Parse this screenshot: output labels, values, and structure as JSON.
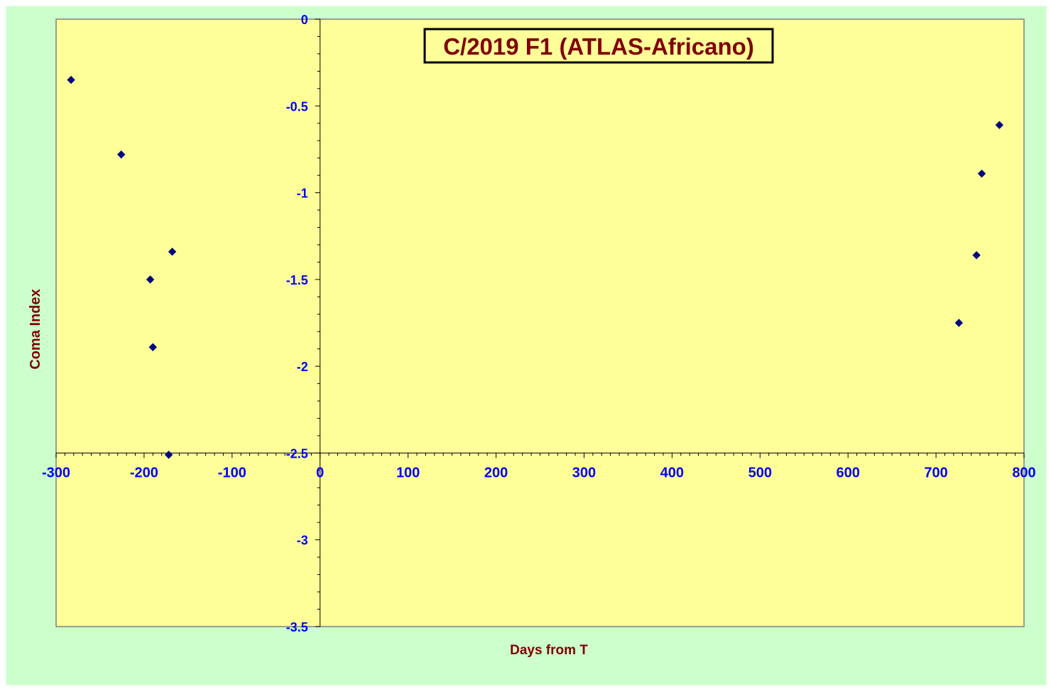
{
  "chart_data": {
    "type": "scatter",
    "title": "C/2019 F1 (ATLAS-Africano)",
    "xlabel": "Days from T",
    "ylabel": "Coma Index",
    "xlim": [
      -300,
      800
    ],
    "ylim": [
      -3.5,
      0
    ],
    "x_ticks": [
      -300,
      -200,
      -100,
      0,
      100,
      200,
      300,
      400,
      500,
      600,
      700,
      800
    ],
    "y_ticks": [
      0,
      -0.5,
      -1,
      -1.5,
      -2,
      -2.5,
      -3,
      -3.5
    ],
    "x_tick_labels": [
      "-300",
      "-200",
      "-100",
      "0",
      "100",
      "200",
      "300",
      "400",
      "500",
      "600",
      "700",
      "800"
    ],
    "y_tick_labels": [
      "0",
      "-0.5",
      "-1",
      "-1.5",
      "-2",
      "-2.5",
      "-3",
      "-3.5"
    ],
    "x_axis_crosses_y_at": -2.5,
    "y_axis_crosses_x_at": 0,
    "grid": false,
    "legend": "none",
    "marker": "diamond",
    "series": [
      {
        "points": [
          {
            "x": -283,
            "y": -0.35
          },
          {
            "x": -226,
            "y": -0.78
          },
          {
            "x": -193,
            "y": -1.5
          },
          {
            "x": -190,
            "y": -1.89
          },
          {
            "x": -168,
            "y": -1.34
          },
          {
            "x": -172,
            "y": -2.51
          },
          {
            "x": 726,
            "y": -1.75
          },
          {
            "x": 746,
            "y": -1.36
          },
          {
            "x": 752,
            "y": -0.89
          },
          {
            "x": 772,
            "y": -0.61
          }
        ]
      }
    ],
    "colors": {
      "page_background": "#ccffcc",
      "plot_background": "#ffff99",
      "marker": "#000080",
      "tick_labels": "#0000ff",
      "axis_titles": "#800000",
      "title_text": "#800000",
      "axis_line": "#000000",
      "plot_border": "#808080"
    }
  }
}
